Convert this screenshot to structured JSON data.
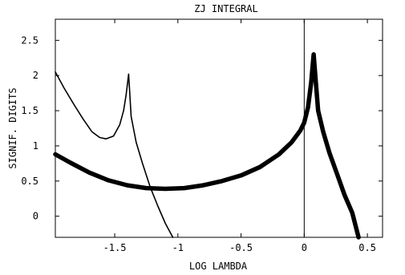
{
  "chart_data": {
    "type": "line",
    "title": "ZJ INTEGRAL",
    "xlabel": "LOG LAMBDA",
    "ylabel": "SIGNIF. DIGITS",
    "xlim": [
      -1.97,
      0.62
    ],
    "ylim": [
      -0.3,
      2.8
    ],
    "x_ticks": [
      -1.5,
      -1,
      -0.5,
      0,
      0.5
    ],
    "x_tick_labels": [
      "-1.5",
      "-1",
      "-0.5",
      "0",
      "0.5"
    ],
    "y_ticks": [
      0,
      0.5,
      1,
      1.5,
      2,
      2.5
    ],
    "y_tick_labels": [
      "0",
      "0.5",
      "1",
      "1.5",
      "2",
      "2.5"
    ],
    "vertical_reference_x": 0,
    "grid": false,
    "series": [
      {
        "style": "thin",
        "points": [
          [
            -1.97,
            2.05
          ],
          [
            -1.9,
            1.82
          ],
          [
            -1.82,
            1.58
          ],
          [
            -1.75,
            1.38
          ],
          [
            -1.68,
            1.2
          ],
          [
            -1.62,
            1.12
          ],
          [
            -1.57,
            1.1
          ],
          [
            -1.51,
            1.14
          ],
          [
            -1.46,
            1.3
          ],
          [
            -1.43,
            1.5
          ],
          [
            -1.41,
            1.72
          ],
          [
            -1.39,
            2.02
          ],
          [
            -1.37,
            1.42
          ],
          [
            -1.33,
            1.05
          ],
          [
            -1.28,
            0.75
          ],
          [
            -1.22,
            0.42
          ],
          [
            -1.16,
            0.15
          ],
          [
            -1.1,
            -0.1
          ],
          [
            -1.04,
            -0.3
          ]
        ]
      },
      {
        "style": "thick",
        "points": [
          [
            -1.97,
            0.88
          ],
          [
            -1.85,
            0.76
          ],
          [
            -1.7,
            0.62
          ],
          [
            -1.55,
            0.51
          ],
          [
            -1.4,
            0.44
          ],
          [
            -1.25,
            0.4
          ],
          [
            -1.1,
            0.39
          ],
          [
            -0.95,
            0.4
          ],
          [
            -0.8,
            0.44
          ],
          [
            -0.65,
            0.5
          ],
          [
            -0.5,
            0.58
          ],
          [
            -0.35,
            0.7
          ],
          [
            -0.2,
            0.88
          ],
          [
            -0.1,
            1.05
          ],
          [
            -0.03,
            1.22
          ],
          [
            0.0,
            1.33
          ],
          [
            0.03,
            1.55
          ],
          [
            0.055,
            1.9
          ],
          [
            0.075,
            2.3
          ],
          [
            0.09,
            1.95
          ],
          [
            0.11,
            1.5
          ],
          [
            0.15,
            1.2
          ],
          [
            0.2,
            0.9
          ],
          [
            0.26,
            0.6
          ],
          [
            0.32,
            0.3
          ],
          [
            0.38,
            0.05
          ],
          [
            0.43,
            -0.3
          ]
        ]
      }
    ]
  }
}
